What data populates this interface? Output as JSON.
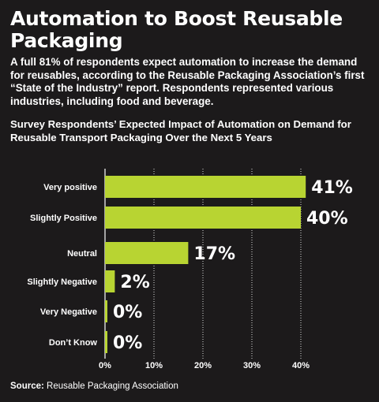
{
  "title": "Automation to Boost Reusable Packaging",
  "intro": "A full 81% of respondents expect automation to increase the demand for reusables, according to the Reusable Packaging Association’s first “State of the Industry” report. Respondents represented various industries, including food and beverage.",
  "source": {
    "label": "Source:",
    "text": "Reusable Packaging Association"
  },
  "colors": {
    "background": "#1c1a1b",
    "bar": "#b8d432",
    "text": "#ffffff"
  },
  "chart_data": {
    "type": "bar",
    "orientation": "horizontal",
    "title": "Survey Respondents’ Expected Impact of Automation on Demand for Reusable Transport Packaging Over the Next 5 Years",
    "categories": [
      "Very positive",
      "Slightly Positive",
      "Neutral",
      "Slightly Negative",
      "Very Negative",
      "Don’t Know"
    ],
    "values": [
      41,
      40,
      17,
      2,
      0,
      0
    ],
    "value_labels": [
      "41%",
      "40%",
      "17%",
      "2%",
      "0%",
      "0%"
    ],
    "xlim": [
      0,
      40
    ],
    "xticks": [
      "0%",
      "10%",
      "20%",
      "30%",
      "40%"
    ],
    "grid": true
  }
}
